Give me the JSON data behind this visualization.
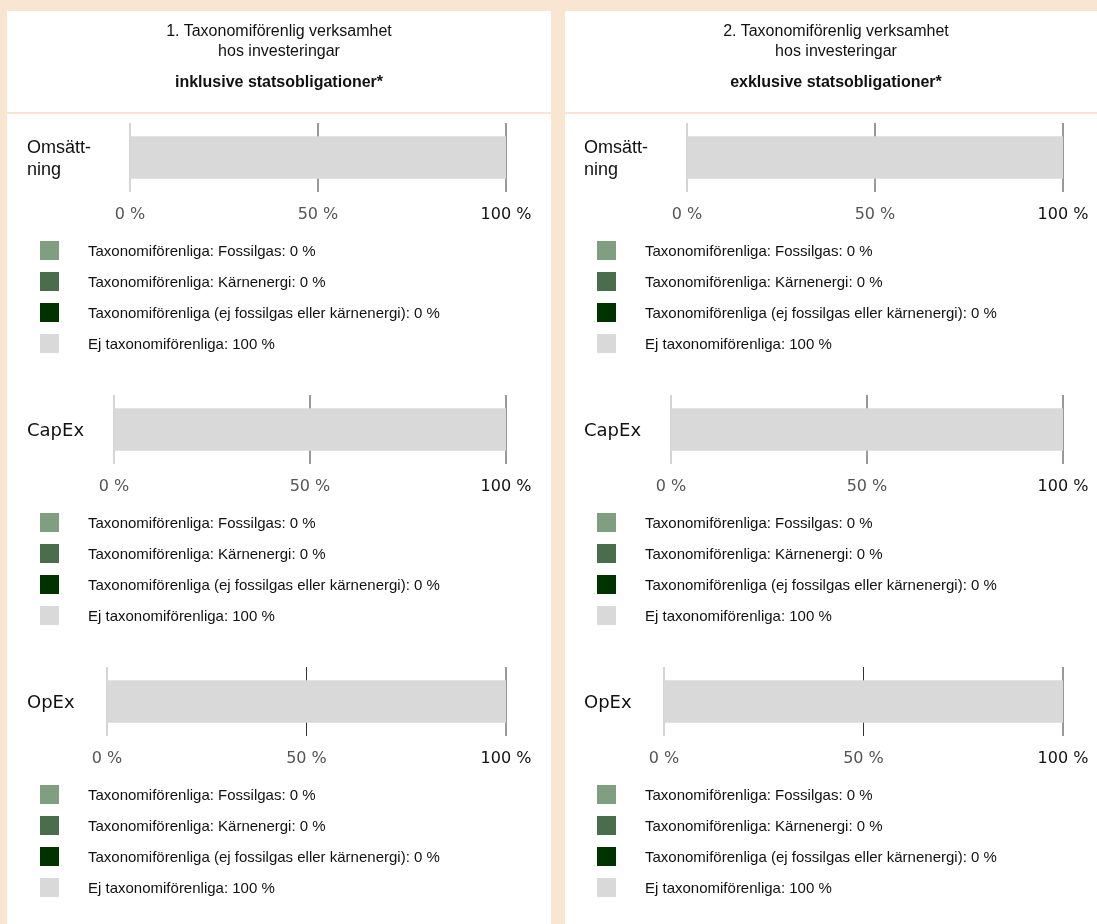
{
  "chart_data": [
    {
      "type": "bar",
      "orientation": "horizontal",
      "stacked": true,
      "title": "1. Taxonomiförenlig verksamhet hos investeringar",
      "subtitle": "inklusive statsobligationer*",
      "categories": [
        "Omsätt-ning"
      ],
      "xlim": [
        0,
        100
      ],
      "xticks": [
        {
          "value": 0,
          "label": "0 %"
        },
        {
          "value": 50,
          "label": "50 %"
        },
        {
          "value": 100,
          "label": "100 %"
        }
      ],
      "grid": "x",
      "legend": "bottom",
      "series": [
        {
          "name": "Taxonomiförenliga: Fossilgas: 0 %",
          "color": "#7f9f80",
          "values": [
            0
          ]
        },
        {
          "name": "Taxonomiförenliga: Kärnenergi: 0 %",
          "color": "#4a6e4b",
          "values": [
            0
          ]
        },
        {
          "name": "Taxonomiförenliga (ej fossilgas eller kärnenergi): 0 %",
          "color": "#003300",
          "values": [
            0
          ]
        },
        {
          "name": "Ej taxonomiförenliga: 100 %",
          "color": "#d9d9d9",
          "values": [
            100
          ]
        }
      ]
    },
    {
      "type": "bar",
      "orientation": "horizontal",
      "stacked": true,
      "categories": [
        "CapEx"
      ],
      "xlim": [
        0,
        100
      ],
      "xticks": [
        {
          "value": 0,
          "label": "0 %"
        },
        {
          "value": 50,
          "label": "50 %"
        },
        {
          "value": 100,
          "label": "100 %"
        }
      ],
      "grid": "x",
      "legend": "bottom",
      "series": [
        {
          "name": "Taxonomiförenliga: Fossilgas: 0 %",
          "color": "#7f9f80",
          "values": [
            0
          ]
        },
        {
          "name": "Taxonomiförenliga: Kärnenergi: 0 %",
          "color": "#4a6e4b",
          "values": [
            0
          ]
        },
        {
          "name": "Taxonomiförenliga (ej fossilgas eller kärnenergi): 0 %",
          "color": "#003300",
          "values": [
            0
          ]
        },
        {
          "name": "Ej taxonomiförenliga: 100 %",
          "color": "#d9d9d9",
          "values": [
            100
          ]
        }
      ]
    },
    {
      "type": "bar",
      "orientation": "horizontal",
      "stacked": true,
      "categories": [
        "OpEx"
      ],
      "xlim": [
        0,
        100
      ],
      "xticks": [
        {
          "value": 0,
          "label": "0 %"
        },
        {
          "value": 50,
          "label": "50 %"
        },
        {
          "value": 100,
          "label": "100 %"
        }
      ],
      "grid": "x",
      "legend": "bottom",
      "series": [
        {
          "name": "Taxonomiförenliga: Fossilgas: 0 %",
          "color": "#7f9f80",
          "values": [
            0
          ]
        },
        {
          "name": "Taxonomiförenliga: Kärnenergi: 0 %",
          "color": "#4a6e4b",
          "values": [
            0
          ]
        },
        {
          "name": "Taxonomiförenliga (ej fossilgas eller kärnenergi): 0 %",
          "color": "#003300",
          "values": [
            0
          ]
        },
        {
          "name": "Ej taxonomiförenliga: 100 %",
          "color": "#d9d9d9",
          "values": [
            100
          ]
        }
      ]
    },
    {
      "type": "bar",
      "orientation": "horizontal",
      "stacked": true,
      "title": "2. Taxonomiförenlig verksamhet hos investeringar",
      "subtitle": "exklusive statsobligationer*",
      "categories": [
        "Omsätt-ning"
      ],
      "xlim": [
        0,
        100
      ],
      "xticks": [
        {
          "value": 0,
          "label": "0 %"
        },
        {
          "value": 50,
          "label": "50 %"
        },
        {
          "value": 100,
          "label": "100 %"
        }
      ],
      "grid": "x",
      "legend": "bottom",
      "series": [
        {
          "name": "Taxonomiförenliga: Fossilgas: 0 %",
          "color": "#7f9f80",
          "values": [
            0
          ]
        },
        {
          "name": "Taxonomiförenliga: Kärnenergi: 0 %",
          "color": "#4a6e4b",
          "values": [
            0
          ]
        },
        {
          "name": "Taxonomiförenliga (ej fossilgas eller kärnenergi): 0 %",
          "color": "#003300",
          "values": [
            0
          ]
        },
        {
          "name": "Ej taxonomiförenliga: 100 %",
          "color": "#d9d9d9",
          "values": [
            100
          ]
        }
      ]
    },
    {
      "type": "bar",
      "orientation": "horizontal",
      "stacked": true,
      "categories": [
        "CapEx"
      ],
      "xlim": [
        0,
        100
      ],
      "xticks": [
        {
          "value": 0,
          "label": "0 %"
        },
        {
          "value": 50,
          "label": "50 %"
        },
        {
          "value": 100,
          "label": "100 %"
        }
      ],
      "grid": "x",
      "legend": "bottom",
      "series": [
        {
          "name": "Taxonomiförenliga: Fossilgas: 0 %",
          "color": "#7f9f80",
          "values": [
            0
          ]
        },
        {
          "name": "Taxonomiförenliga: Kärnenergi: 0 %",
          "color": "#4a6e4b",
          "values": [
            0
          ]
        },
        {
          "name": "Taxonomiförenliga (ej fossilgas eller kärnenergi): 0 %",
          "color": "#003300",
          "values": [
            0
          ]
        },
        {
          "name": "Ej taxonomiförenliga: 100 %",
          "color": "#d9d9d9",
          "values": [
            100
          ]
        }
      ]
    },
    {
      "type": "bar",
      "orientation": "horizontal",
      "stacked": true,
      "categories": [
        "OpEx"
      ],
      "xlim": [
        0,
        100
      ],
      "xticks": [
        {
          "value": 0,
          "label": "0 %"
        },
        {
          "value": 50,
          "label": "50 %"
        },
        {
          "value": 100,
          "label": "100 %"
        }
      ],
      "grid": "x",
      "legend": "bottom",
      "series": [
        {
          "name": "Taxonomiförenliga: Fossilgas: 0 %",
          "color": "#7f9f80",
          "values": [
            0
          ]
        },
        {
          "name": "Taxonomiförenliga: Kärnenergi: 0 %",
          "color": "#4a6e4b",
          "values": [
            0
          ]
        },
        {
          "name": "Taxonomiförenliga (ej fossilgas eller kärnenergi): 0 %",
          "color": "#003300",
          "values": [
            0
          ]
        },
        {
          "name": "Ej taxonomiförenliga: 100 %",
          "color": "#d9d9d9",
          "values": [
            100
          ]
        }
      ]
    }
  ]
}
